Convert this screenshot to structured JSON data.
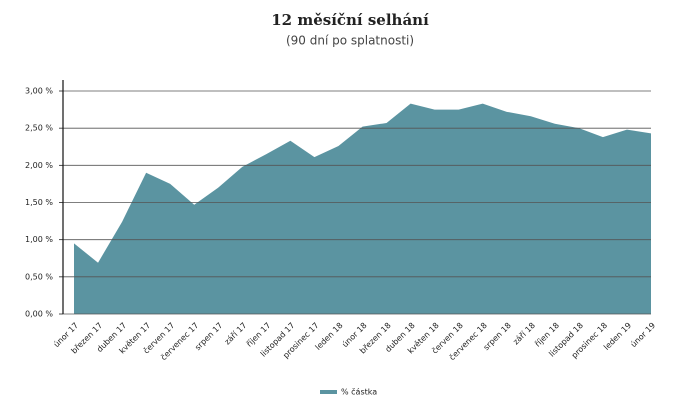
{
  "chart_data": {
    "type": "area",
    "title": "12 měsíční selhání",
    "subtitle": "(90 dní po splatnosti)",
    "categories": [
      "únor 17",
      "březen 17",
      "duben 17",
      "květen 17",
      "červen 17",
      "červenec 17",
      "srpen 17",
      "září 17",
      "říjen 17",
      "listopad 17",
      "prosinec 17",
      "leden 18",
      "únor 18",
      "březen 18",
      "duben 18",
      "květen 18",
      "červen 18",
      "červenec 18",
      "srpen 18",
      "září 18",
      "říjen 18",
      "listopad 18",
      "prosinec 18",
      "leden 19",
      "únor 19"
    ],
    "series": [
      {
        "name": "% částka",
        "color": "#5b94a1",
        "values": [
          0.95,
          0.69,
          1.24,
          1.9,
          1.75,
          1.47,
          1.7,
          1.98,
          2.15,
          2.33,
          2.11,
          2.26,
          2.52,
          2.57,
          2.83,
          2.75,
          2.75,
          2.83,
          2.72,
          2.66,
          2.56,
          2.5,
          2.38,
          2.48,
          2.43
        ]
      }
    ],
    "ylim": [
      0,
      3
    ],
    "yticks": [
      {
        "value": 0,
        "label": "0,00 %"
      },
      {
        "value": 0.5,
        "label": "0,50 %"
      },
      {
        "value": 1,
        "label": "1,00 %"
      },
      {
        "value": 1.5,
        "label": "1,50 %"
      },
      {
        "value": 2,
        "label": "2,00 %"
      },
      {
        "value": 2.5,
        "label": "2,50 %"
      },
      {
        "value": 3,
        "label": "3,00 %"
      }
    ],
    "grid": true,
    "legend": "bottom"
  }
}
